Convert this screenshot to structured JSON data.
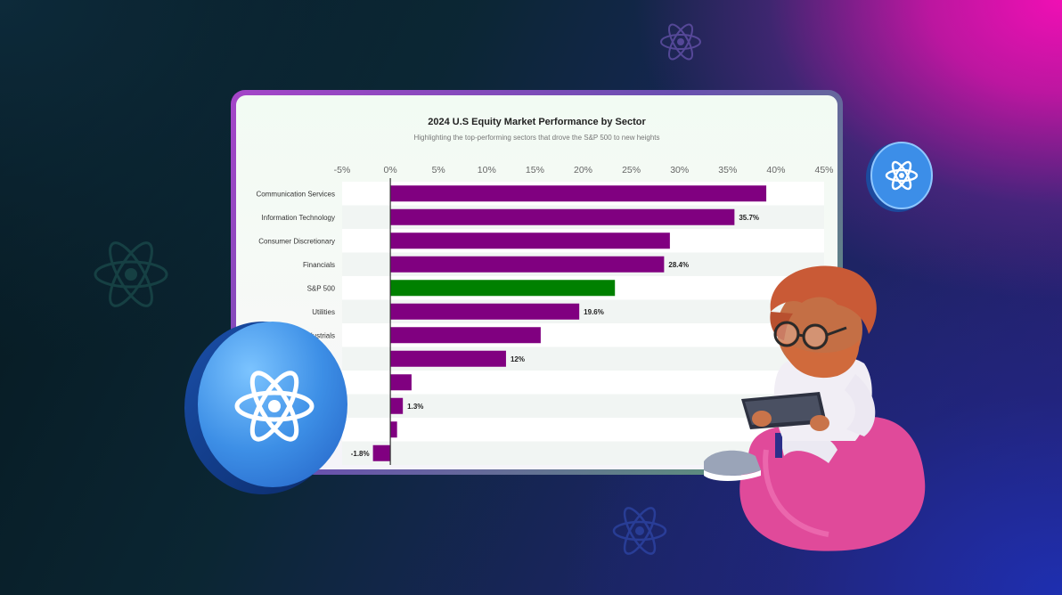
{
  "chart_data": {
    "type": "bar",
    "orientation": "horizontal",
    "title": "2024 U.S Equity Market Performance by Sector",
    "subtitle": "Highlighting the top-performing sectors that drove the S&P 500 to new heights",
    "xlim": [
      -5,
      45
    ],
    "ticks": [
      "-5%",
      "0%",
      "5%",
      "10%",
      "15%",
      "20%",
      "25%",
      "30%",
      "35%",
      "40%",
      "45%"
    ],
    "tick_values": [
      -5,
      0,
      5,
      10,
      15,
      20,
      25,
      30,
      35,
      40,
      45
    ],
    "categories": [
      "Communication Services",
      "Information Technology",
      "Consumer Discretionary",
      "Financials",
      "S&P 500",
      "Utilities",
      "Industrials",
      "",
      "",
      "",
      "",
      ""
    ],
    "values": [
      39.0,
      35.7,
      29.0,
      28.4,
      23.3,
      19.6,
      15.6,
      12,
      2.2,
      1.3,
      0.7,
      -1.8
    ],
    "data_labels": [
      "",
      "35.7%",
      "",
      "28.4%",
      "",
      "19.6%",
      "",
      "12%",
      "",
      "1.3%",
      "",
      "-1.8%"
    ],
    "bar_colors": [
      "#800080",
      "#800080",
      "#800080",
      "#800080",
      "#008000",
      "#800080",
      "#800080",
      "#800080",
      "#800080",
      "#800080",
      "#800080",
      "#800080"
    ],
    "default_color": "#800080",
    "highlight_color": "#008000"
  }
}
